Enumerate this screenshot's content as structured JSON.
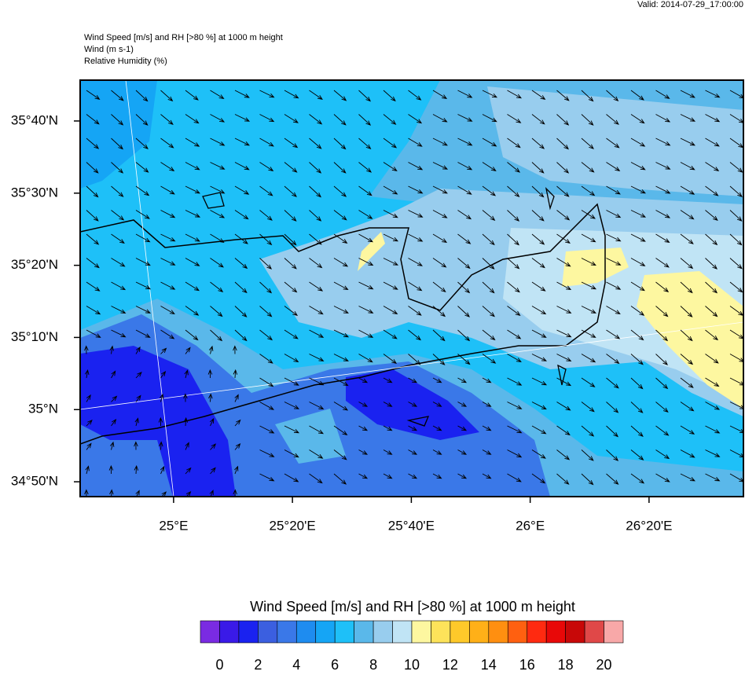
{
  "header": {
    "valid": "Valid: 2014-07-29_17:00:00",
    "lines": [
      "Wind Speed [m/s] and RH [>80 %] at 1000 m height",
      "Wind   (m s-1)",
      "Relative Humidity   (%)"
    ]
  },
  "map": {
    "lon_lim": [
      24.738,
      26.598
    ],
    "lat_lim": [
      34.799,
      35.761
    ],
    "lat_ticks": [
      {
        "value": 34.8333,
        "label": "34°50'N"
      },
      {
        "value": 35.0,
        "label": "35°N"
      },
      {
        "value": 35.1667,
        "label": "35°10'N"
      },
      {
        "value": 35.3333,
        "label": "35°20'N"
      },
      {
        "value": 35.5,
        "label": "35°30'N"
      },
      {
        "value": 35.6667,
        "label": "35°40'N"
      }
    ],
    "lon_ticks": [
      {
        "value": 25.0,
        "label": "25°E"
      },
      {
        "value": 25.3333,
        "label": "25°20'E"
      },
      {
        "value": 25.6667,
        "label": "25°40'E"
      },
      {
        "value": 26.0,
        "label": "26°E"
      },
      {
        "value": 26.3333,
        "label": "26°20'E"
      }
    ]
  },
  "colorbar": {
    "title": "Wind Speed [m/s] and RH [>80 %] at 1000 m height",
    "lim": [
      -1,
      21
    ],
    "ticks": [
      0,
      2,
      4,
      6,
      8,
      10,
      12,
      14,
      16,
      18,
      20
    ],
    "colors": [
      "#7a2be2",
      "#3a1ae8",
      "#1a22f0",
      "#3b5fe0",
      "#3a78e8",
      "#1e8cf0",
      "#15a5f5",
      "#1ec0f8",
      "#5ab8ea",
      "#98cdee",
      "#c0e4f5",
      "#fdf7a0",
      "#fde35a",
      "#fec92a",
      "#ffb018",
      "#ff8f10",
      "#ff6010",
      "#ff2a10",
      "#e80808",
      "#c80808",
      "#e04848",
      "#f8a8a8"
    ]
  }
}
